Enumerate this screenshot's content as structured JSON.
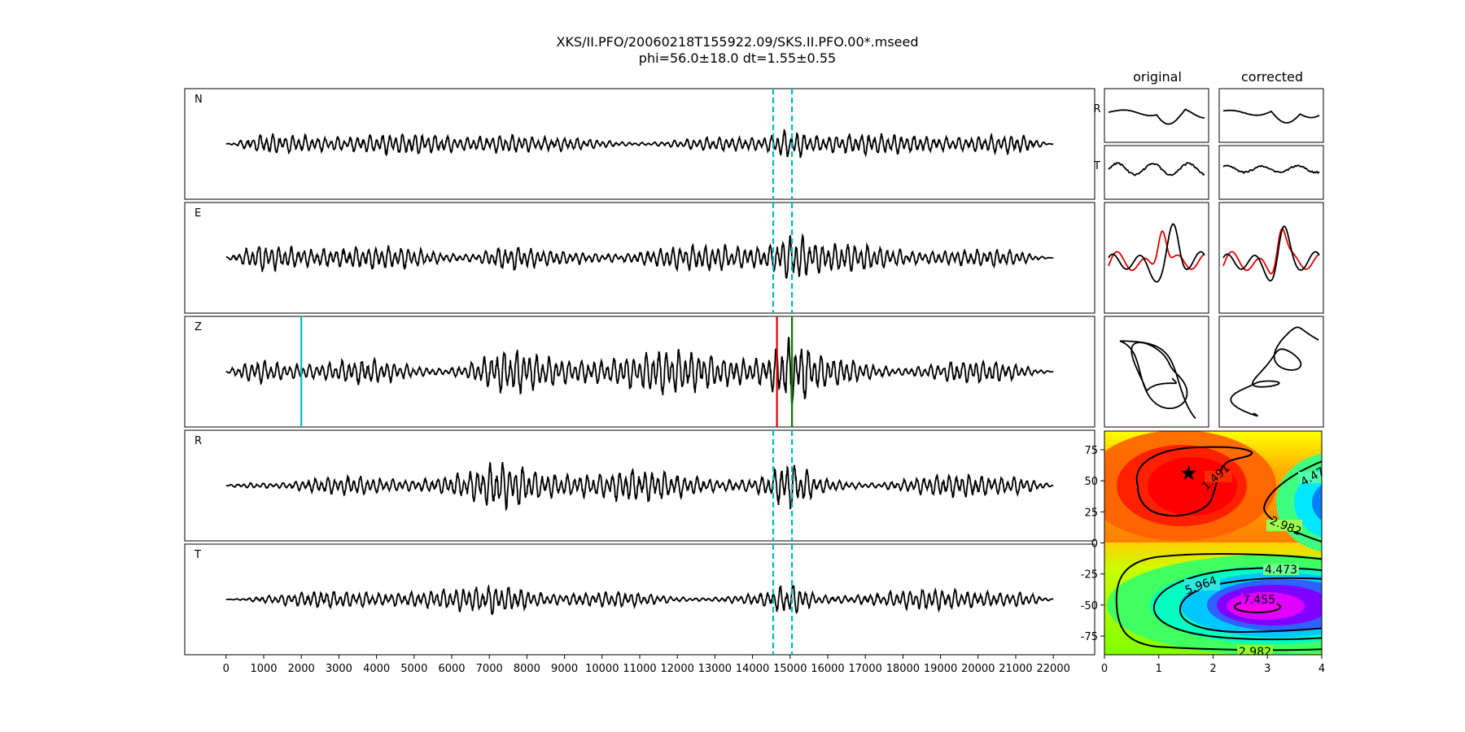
{
  "title_line1": "XKS/II.PFO/20060218T155922.09/SKS.II.PFO.00*.mseed",
  "title_line2": "phi=56.0±18.0 dt=1.55±0.55",
  "column_titles": {
    "original": "original",
    "corrected": "corrected"
  },
  "chart_data": [
    {
      "type": "line",
      "name": "seismogram-traces",
      "panels": [
        "N",
        "E",
        "Z",
        "R",
        "T"
      ],
      "x_range": [
        0,
        22000
      ],
      "xlim": [
        -1100,
        23100
      ],
      "x_ticks": [
        0,
        1000,
        2000,
        3000,
        4000,
        5000,
        6000,
        7000,
        8000,
        9000,
        10000,
        11000,
        12000,
        13000,
        14000,
        15000,
        16000,
        17000,
        18000,
        19000,
        20000,
        21000,
        22000
      ],
      "window_markers": {
        "dashed": [
          14550,
          15050
        ],
        "z_lines": [
          {
            "x": 2000,
            "color": "#00bcbc"
          },
          {
            "x": 14650,
            "color": "#e00000"
          },
          {
            "x": 15050,
            "color": "#007f00"
          }
        ]
      },
      "line_color": "#000000"
    },
    {
      "type": "line",
      "name": "window-waveforms",
      "rows": [
        "R",
        "T"
      ],
      "columns": [
        "original",
        "corrected"
      ],
      "overlay_colors": [
        "#e00000",
        "#000000"
      ]
    },
    {
      "type": "scatter",
      "name": "particle-motion",
      "columns": [
        "original",
        "corrected"
      ]
    },
    {
      "type": "heatmap",
      "name": "error-surface",
      "xlim": [
        0,
        4
      ],
      "ylim": [
        -90,
        90
      ],
      "x_ticks": [
        0,
        1,
        2,
        3,
        4
      ],
      "y_ticks": [
        75,
        50,
        25,
        0,
        -25,
        -50,
        -75
      ],
      "best": {
        "dt": 1.55,
        "phi": 56.0
      },
      "contour_labels": [
        "1.491",
        "2.982",
        "4.473",
        "5.964",
        "7.455",
        "4.47",
        "2.982"
      ],
      "colormap": "hsv"
    }
  ]
}
